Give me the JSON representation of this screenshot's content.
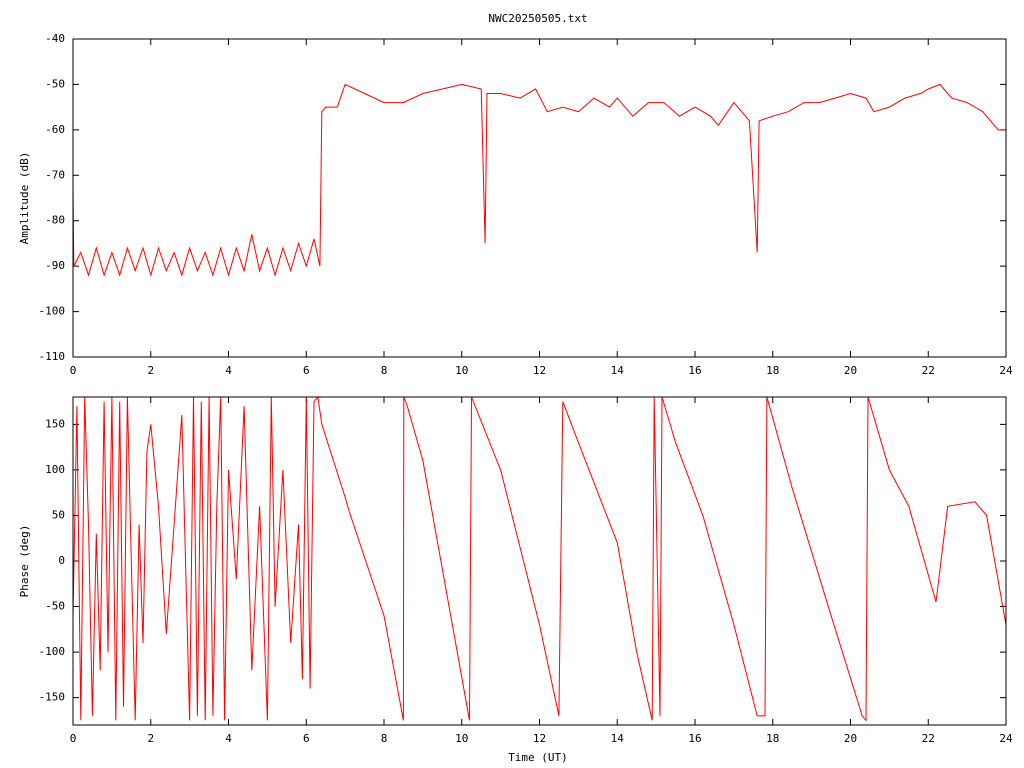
{
  "chart_data": [
    {
      "type": "line",
      "title": "NWC20250505.txt",
      "y_label": "Amplitude (dB)",
      "xlim": [
        0,
        24
      ],
      "xticks": [
        0,
        2,
        4,
        6,
        8,
        10,
        12,
        14,
        16,
        18,
        20,
        22,
        24
      ],
      "ylim": [
        -110,
        -40
      ],
      "yticks": [
        -40,
        -50,
        -60,
        -70,
        -80,
        -90,
        -100,
        -110
      ],
      "series": [
        {
          "color": "#ff0000",
          "x": [
            0,
            0.02,
            0.2,
            0.4,
            0.6,
            0.8,
            1.0,
            1.2,
            1.4,
            1.6,
            1.8,
            2.0,
            2.2,
            2.4,
            2.6,
            2.8,
            3.0,
            3.2,
            3.4,
            3.6,
            3.8,
            4.0,
            4.2,
            4.4,
            4.6,
            4.8,
            5.0,
            5.2,
            5.4,
            5.6,
            5.8,
            6.0,
            6.2,
            6.35,
            6.4,
            6.5,
            6.8,
            7.0,
            7.5,
            8.0,
            8.5,
            9.0,
            9.5,
            10.0,
            10.5,
            10.6,
            10.65,
            11.0,
            11.5,
            11.9,
            12.2,
            12.6,
            13.0,
            13.4,
            13.8,
            14.0,
            14.4,
            14.8,
            15.2,
            15.6,
            16.0,
            16.4,
            16.6,
            17.0,
            17.4,
            17.6,
            17.65,
            18.0,
            18.4,
            18.8,
            19.2,
            19.6,
            20.0,
            20.4,
            20.6,
            21.0,
            21.4,
            21.8,
            22.0,
            22.3,
            22.6,
            23.0,
            23.4,
            23.8,
            24.0
          ],
          "values": [
            -72,
            -90,
            -87,
            -92,
            -86,
            -92,
            -87,
            -92,
            -86,
            -91,
            -86,
            -92,
            -86,
            -91,
            -87,
            -92,
            -86,
            -91,
            -87,
            -92,
            -86,
            -92,
            -86,
            -91,
            -83,
            -91,
            -86,
            -92,
            -86,
            -91,
            -85,
            -90,
            -84,
            -90,
            -56,
            -55,
            -55,
            -50,
            -52,
            -54,
            -54,
            -52,
            -51,
            -50,
            -51,
            -85,
            -52,
            -52,
            -53,
            -51,
            -56,
            -55,
            -56,
            -53,
            -55,
            -53,
            -57,
            -54,
            -54,
            -57,
            -55,
            -57,
            -59,
            -54,
            -58,
            -87,
            -58,
            -57,
            -56,
            -54,
            -54,
            -53,
            -52,
            -53,
            -56,
            -55,
            -53,
            -52,
            -51,
            -50,
            -53,
            -54,
            -56,
            -60,
            -60
          ]
        }
      ]
    },
    {
      "type": "line",
      "x_label": "Time (UT)",
      "y_label": "Phase (deg)",
      "xlim": [
        0,
        24
      ],
      "xticks": [
        0,
        2,
        4,
        6,
        8,
        10,
        12,
        14,
        16,
        18,
        20,
        22,
        24
      ],
      "ylim": [
        -180,
        180
      ],
      "yticks": [
        -150,
        -100,
        -50,
        0,
        50,
        100,
        150
      ],
      "series": [
        {
          "color": "#ff0000",
          "x": [
            0,
            0.1,
            0.2,
            0.3,
            0.4,
            0.5,
            0.6,
            0.7,
            0.8,
            0.9,
            1.0,
            1.1,
            1.2,
            1.3,
            1.4,
            1.5,
            1.6,
            1.7,
            1.8,
            1.9,
            2.0,
            2.2,
            2.4,
            2.6,
            2.8,
            3.0,
            3.1,
            3.2,
            3.3,
            3.4,
            3.5,
            3.6,
            3.7,
            3.8,
            3.9,
            4.0,
            4.2,
            4.4,
            4.6,
            4.8,
            5.0,
            5.1,
            5.2,
            5.4,
            5.6,
            5.8,
            5.9,
            6.0,
            6.1,
            6.2,
            6.3,
            6.4,
            7.0,
            7.1,
            8.0,
            8.5,
            8.51,
            8.6,
            9.0,
            10.2,
            10.25,
            11.0,
            12.0,
            12.5,
            12.6,
            13.0,
            14.0,
            14.5,
            14.9,
            14.95,
            15.1,
            15.15,
            15.5,
            16.2,
            17.0,
            17.6,
            17.8,
            17.85,
            18.5,
            19.5,
            20.3,
            20.4,
            20.45,
            21.0,
            21.5,
            22.2,
            22.5,
            23.2,
            23.5,
            24.0
          ],
          "values": [
            -60,
            170,
            -175,
            180,
            40,
            -170,
            30,
            -120,
            175,
            -100,
            180,
            -175,
            175,
            -160,
            180,
            0,
            -175,
            40,
            -90,
            120,
            150,
            60,
            -80,
            40,
            160,
            -175,
            180,
            -170,
            175,
            -175,
            180,
            -170,
            60,
            180,
            -175,
            100,
            -20,
            170,
            -120,
            60,
            -175,
            180,
            -50,
            100,
            -90,
            40,
            -130,
            180,
            -140,
            175,
            180,
            150,
            70,
            55,
            -60,
            -175,
            180,
            170,
            110,
            -175,
            180,
            100,
            -70,
            -170,
            175,
            130,
            20,
            -100,
            -175,
            180,
            -170,
            180,
            130,
            50,
            -70,
            -170,
            -170,
            180,
            80,
            -60,
            -170,
            -175,
            180,
            100,
            60,
            -45,
            60,
            65,
            50,
            -70
          ]
        }
      ]
    }
  ]
}
